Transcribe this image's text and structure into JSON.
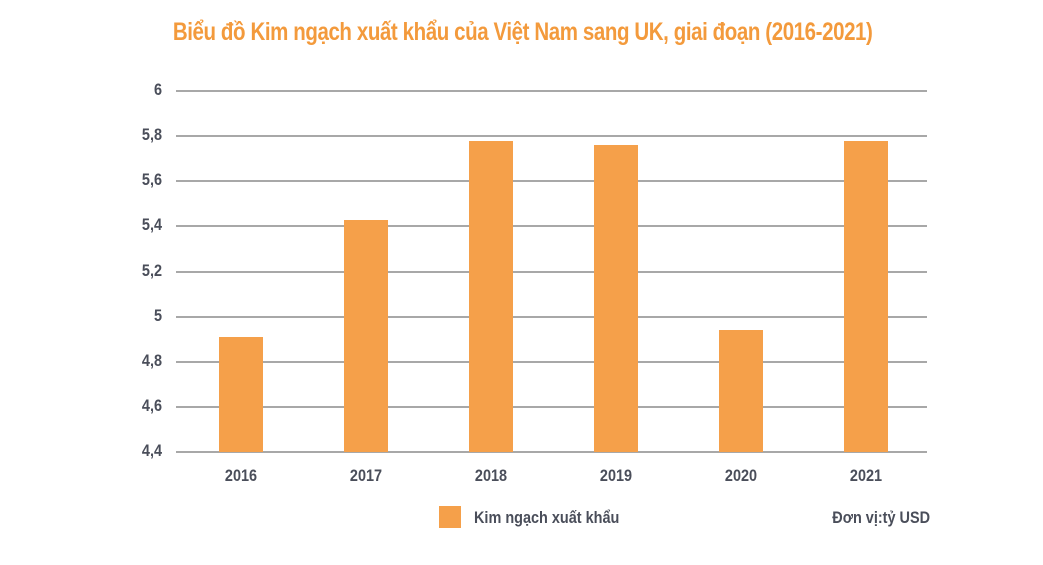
{
  "chart_data": {
    "type": "bar",
    "title": "Biểu đồ Kim ngạch xuất khẩu của Việt Nam sang UK, giai đoạn (2016-2021)",
    "categories": [
      "2016",
      "2017",
      "2018",
      "2019",
      "2020",
      "2021"
    ],
    "series": [
      {
        "name": "Kim ngạch xuất khẩu",
        "values": [
          4.91,
          5.43,
          5.78,
          5.76,
          4.94,
          5.78
        ],
        "color": "#f5a04a"
      }
    ],
    "xlabel": "",
    "ylabel": "",
    "unit": "Đơn vị:tỷ USD",
    "ylim": [
      4.4,
      6
    ],
    "yticks": [
      "6",
      "5,8",
      "5,6",
      "5,4",
      "5,2",
      "5",
      "4,8",
      "4,6",
      "4,4"
    ],
    "grid": true,
    "legend_position": "bottom"
  },
  "title": "Biểu đồ Kim ngạch xuất khẩu của Việt Nam sang UK, giai đoạn (2016-2021)",
  "legend": {
    "label": "Kim ngạch xuất khẩu"
  },
  "unit": "Đơn vị:tỷ USD"
}
